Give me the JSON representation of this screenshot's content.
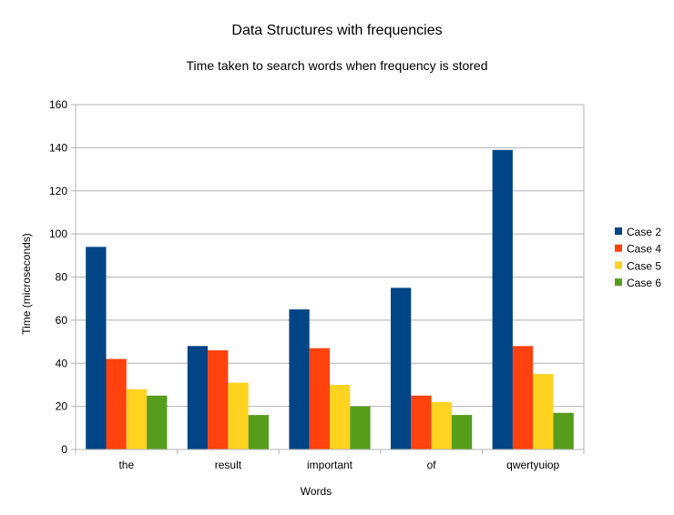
{
  "chart_data": {
    "type": "bar",
    "title": "Data Structures with frequencies",
    "subtitle": "Time taken to search words when frequency is stored",
    "xlabel": "Words",
    "ylabel": "Time (microseconds)",
    "ylim": [
      0,
      160
    ],
    "yticks": [
      0,
      20,
      40,
      60,
      80,
      100,
      120,
      140,
      160
    ],
    "grid": "horizontal",
    "legend_position": "right",
    "categories": [
      "the",
      "result",
      "important",
      "of",
      "qwertyuiop"
    ],
    "series": [
      {
        "name": "Case 2",
        "color": "#004586",
        "values": [
          94,
          48,
          65,
          75,
          139
        ]
      },
      {
        "name": "Case 4",
        "color": "#ff420e",
        "values": [
          42,
          46,
          47,
          25,
          48
        ]
      },
      {
        "name": "Case 5",
        "color": "#ffd320",
        "values": [
          28,
          31,
          30,
          22,
          35
        ]
      },
      {
        "name": "Case 6",
        "color": "#579d1c",
        "values": [
          25,
          16,
          20,
          16,
          17
        ]
      }
    ]
  }
}
